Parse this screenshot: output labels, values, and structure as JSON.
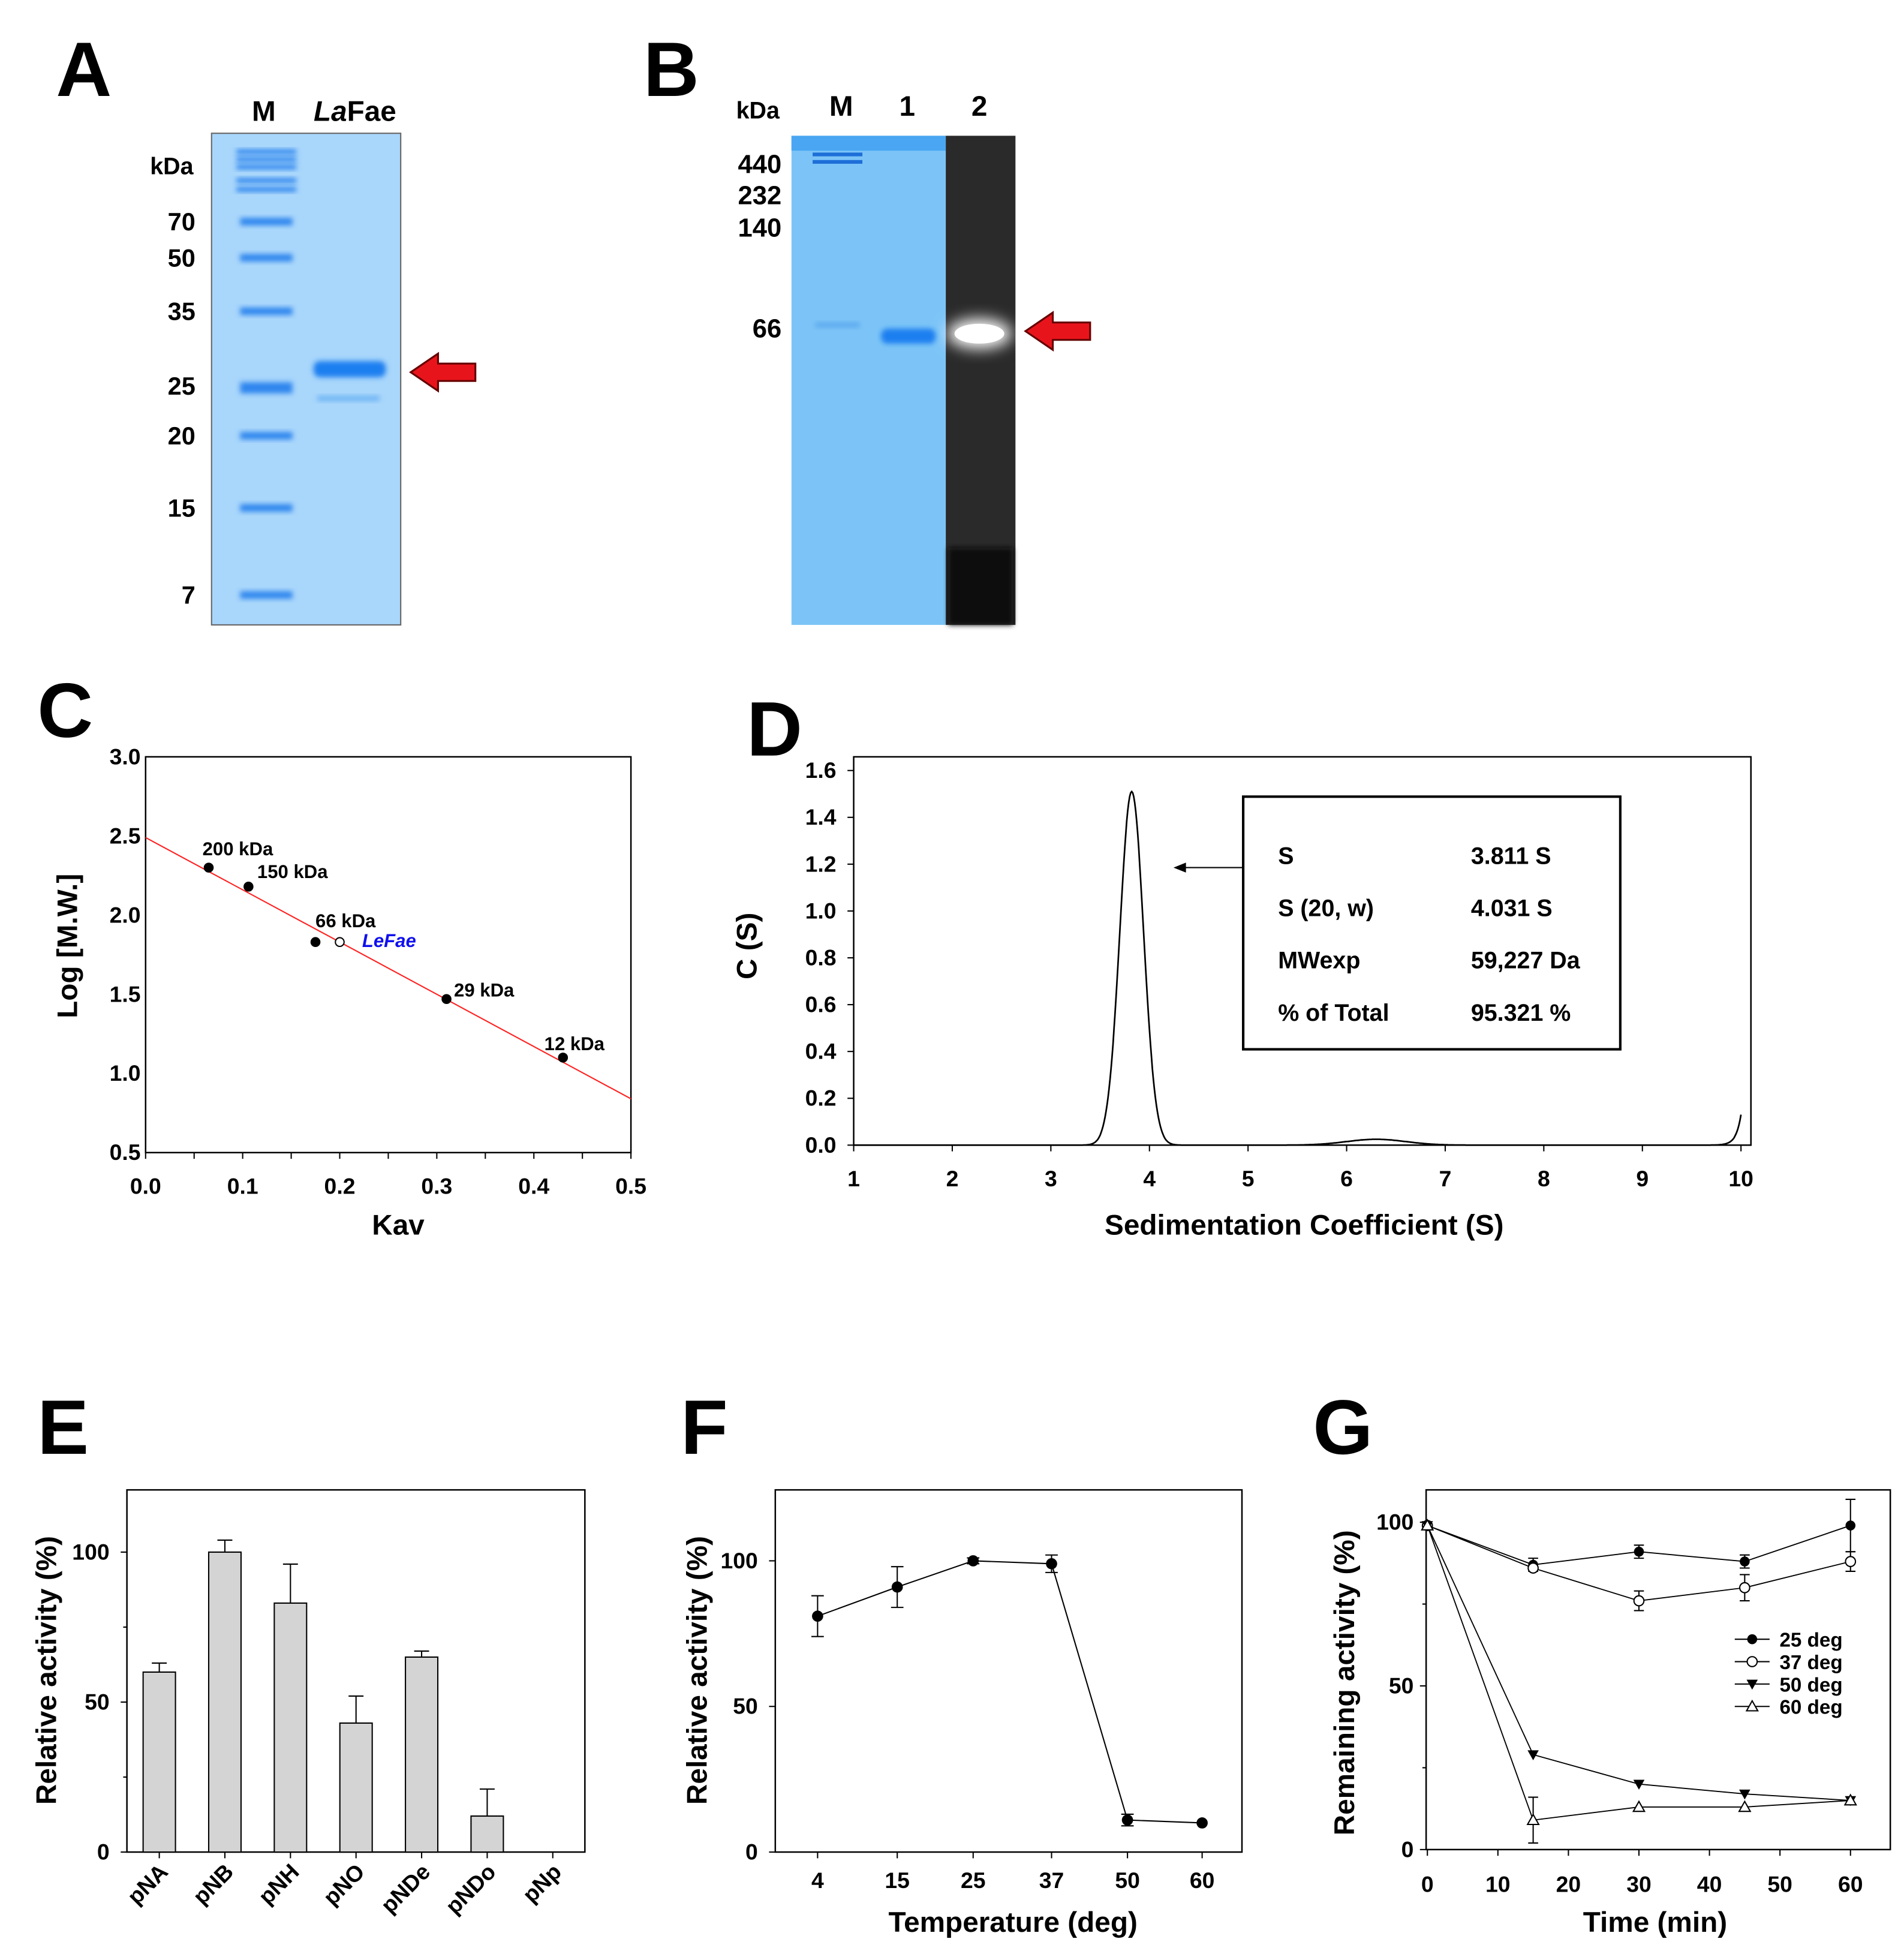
{
  "panels": {
    "A": "A",
    "B": "B",
    "C": "C",
    "D": "D",
    "E": "E",
    "F": "F",
    "G": "G"
  },
  "gels": {
    "A": {
      "lanes": [
        "M",
        "La",
        "Fae"
      ],
      "unit": "kDa",
      "markers": [
        "70",
        "50",
        "35",
        "25",
        "20",
        "15",
        "7"
      ],
      "marker_kda": [
        70,
        50,
        35,
        25,
        20,
        15,
        7
      ],
      "band_kda": 28,
      "colors": {
        "gel": "#a9d6fb",
        "band": "#1e7ff0",
        "arrow": "#e8141c"
      }
    },
    "B": {
      "lanes": [
        "M",
        "1",
        "2"
      ],
      "unit": "kDa",
      "markers": [
        "440",
        "232",
        "140",
        "66"
      ],
      "band_kda": 66,
      "colors": {
        "gel": "#7cc4f7",
        "dark": "#2a2a2a",
        "band": "#1e7ff0",
        "arrow": "#e8141c"
      }
    }
  },
  "chart_data": [
    {
      "id": "C",
      "type": "scatter",
      "xlabel": "Kav",
      "ylabel": "Log [M.W.]",
      "xlim": [
        0,
        0.5
      ],
      "ylim": [
        0.5,
        3.0
      ],
      "xticks": [
        "0.0",
        "0.1",
        "0.2",
        "0.3",
        "0.4",
        "0.5"
      ],
      "yticks": [
        "0.5",
        "1.0",
        "1.5",
        "2.0",
        "2.5",
        "3.0"
      ],
      "points": [
        {
          "x": 0.065,
          "y": 2.3,
          "label": "200 kDa",
          "filled": true
        },
        {
          "x": 0.106,
          "y": 2.18,
          "label": "150 kDa",
          "filled": true
        },
        {
          "x": 0.175,
          "y": 1.83,
          "label": "66 kDa",
          "filled": true
        },
        {
          "x": 0.2,
          "y": 1.83,
          "label": "LeFae",
          "filled": false
        },
        {
          "x": 0.31,
          "y": 1.47,
          "label": "29 kDa",
          "filled": true
        },
        {
          "x": 0.43,
          "y": 1.1,
          "label": "12 kDa",
          "filled": true
        }
      ],
      "fit": {
        "intercept": 2.49,
        "slope": -3.3,
        "color": "#ff2020"
      },
      "highlight_color": "#1010ee"
    },
    {
      "id": "D",
      "type": "line",
      "xlabel": "Sedimentation  Coefficient  (S)",
      "ylabel": "C (S)",
      "xlim": [
        1,
        10
      ],
      "ylim": [
        0,
        1.6
      ],
      "xticks": [
        "1",
        "2",
        "3",
        "4",
        "5",
        "6",
        "7",
        "8",
        "9",
        "10"
      ],
      "yticks": [
        "0.0",
        "0.2",
        "0.4",
        "0.6",
        "0.8",
        "1.0",
        "1.2",
        "1.4",
        "1.6"
      ],
      "peaks": [
        {
          "center": 3.82,
          "height": 1.51,
          "width": 0.12
        },
        {
          "center": 6.3,
          "height": 0.025,
          "width": 0.3
        }
      ],
      "end_rise": 0.13,
      "table": [
        {
          "k": "S",
          "v": "3.811 S"
        },
        {
          "k": "S (20, w)",
          "v": "4.031 S"
        },
        {
          "k": "MWexp",
          "v": "59,227 Da"
        },
        {
          "k": "% of Total",
          "v": "95.321 %"
        }
      ]
    },
    {
      "id": "E",
      "type": "bar",
      "ylabel": "Relative  activity  (%)",
      "ylim": [
        0,
        120
      ],
      "yticks": [
        "0",
        "50",
        "100"
      ],
      "categories": [
        "pNA",
        "pNB",
        "pNH",
        "pNO",
        "pNDe",
        "pNDo",
        "pNp"
      ],
      "values": [
        60,
        100,
        83,
        43,
        65,
        12,
        0
      ],
      "errors": [
        3,
        4,
        13,
        9,
        2,
        9,
        0
      ],
      "bar_color": "#d4d4d4"
    },
    {
      "id": "F",
      "type": "line",
      "xlabel": "Temperature (deg)",
      "ylabel": "Relative  activity  (%)",
      "ylim": [
        0,
        125
      ],
      "yticks": [
        "0",
        "50",
        "100"
      ],
      "categories": [
        "4",
        "15",
        "25",
        "37",
        "50",
        "60"
      ],
      "values": [
        81,
        91,
        100,
        99,
        11,
        10
      ],
      "errors": [
        7,
        7,
        1,
        3,
        2,
        0
      ]
    },
    {
      "id": "G",
      "type": "line",
      "xlabel": "Time (min)",
      "ylabel": "Remaining  activity  (%)",
      "xlim": [
        0,
        65
      ],
      "ylim": [
        0,
        110
      ],
      "xticks": [
        "0",
        "10",
        "20",
        "30",
        "40",
        "50",
        "60"
      ],
      "yticks": [
        "0",
        "50",
        "100"
      ],
      "x": [
        0,
        15,
        30,
        45,
        60
      ],
      "legend_position": "right",
      "series": [
        {
          "name": "25 deg",
          "marker": "filled-circle",
          "values": [
            99,
            87,
            91,
            88,
            99
          ],
          "errors": [
            1,
            2,
            2,
            2,
            8
          ]
        },
        {
          "name": "37 deg",
          "marker": "open-circle",
          "values": [
            99,
            86,
            76,
            80,
            88
          ],
          "errors": [
            1,
            1,
            3,
            4,
            3
          ]
        },
        {
          "name": "50 deg",
          "marker": "filled-triangle-down",
          "values": [
            99,
            29,
            20,
            17,
            15
          ],
          "errors": [
            1,
            1,
            1,
            1,
            1
          ]
        },
        {
          "name": "60 deg",
          "marker": "open-triangle-up",
          "values": [
            99,
            9,
            13,
            13,
            15
          ],
          "errors": [
            1,
            7,
            1,
            1,
            1
          ]
        }
      ]
    }
  ]
}
